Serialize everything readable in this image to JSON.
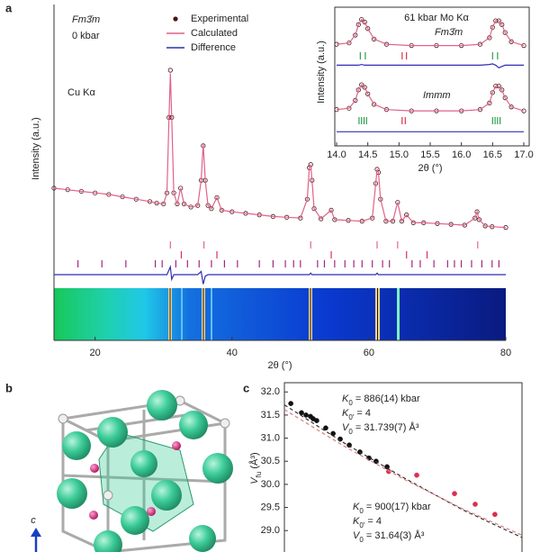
{
  "panel_labels": [
    "a",
    "b",
    "c"
  ],
  "structure": {
    "axis_label": "c"
  },
  "chart_data": [
    {
      "type": "line",
      "xlabel": "2θ (°)",
      "ylabel": "Intensity (a.u.)",
      "annotations": [
        "Fm3̄m",
        "0 kbar",
        "Cu Kα"
      ],
      "x": [
        14,
        16,
        18,
        20,
        22,
        24,
        26,
        28,
        29,
        30,
        30.5,
        30.8,
        31,
        31.2,
        31.5,
        32,
        32.5,
        33,
        34,
        35,
        35.5,
        35.8,
        36.1,
        36.5,
        37,
        37.8,
        38.5,
        40,
        42,
        44,
        46,
        48,
        50,
        51,
        51.3,
        51.5,
        51.7,
        52,
        53,
        54.5,
        55,
        57,
        59,
        60.5,
        61,
        61.2,
        61.4,
        61.7,
        62.5,
        63.5,
        64.2,
        64.8,
        65.5,
        66.5,
        68,
        70,
        72,
        74,
        75.5,
        75.8,
        76.1,
        77,
        78,
        80
      ],
      "series": [
        {
          "name": "Experimental",
          "color": "#4a1414",
          "style": "markers",
          "values": [
            25,
            24,
            23,
            22,
            21,
            19.5,
            18,
            16.5,
            15.5,
            15,
            22,
            70,
            100,
            70,
            22,
            15,
            25,
            15,
            13,
            14,
            30,
            52,
            30,
            14,
            12,
            19,
            11,
            10,
            9,
            8,
            7,
            6.5,
            6,
            18,
            38,
            40,
            30,
            12,
            5.5,
            11,
            5,
            4.5,
            4,
            6,
            28,
            37,
            35,
            18,
            4,
            4,
            16,
            4,
            8,
            3,
            3,
            2.5,
            2,
            1.5,
            6,
            10,
            5,
            1,
            0.5,
            0
          ]
        },
        {
          "name": "Calculated",
          "color": "#e0628a",
          "style": "line",
          "values": [
            25,
            24,
            23,
            22,
            21,
            19.5,
            18,
            16.5,
            15.5,
            15,
            22,
            70,
            98,
            70,
            22,
            15,
            25,
            15,
            13,
            14,
            30,
            53,
            30,
            14,
            12,
            19,
            11,
            10,
            9,
            8,
            7,
            6.5,
            6,
            18,
            38,
            40,
            30,
            12,
            5.5,
            11,
            5,
            4.5,
            4,
            6,
            28,
            37,
            35,
            18,
            4,
            4,
            16,
            4,
            8,
            3,
            3,
            2.5,
            2,
            1.5,
            6,
            10,
            5,
            1,
            0.5,
            0
          ]
        },
        {
          "name": "Difference",
          "color": "#2f2fb5",
          "style": "line",
          "values": [
            -30,
            -30,
            -30,
            -30,
            -30,
            -30,
            -30,
            -30,
            -30,
            -30,
            -30,
            -27,
            -25,
            -33,
            -30,
            -30,
            -30,
            -30,
            -30,
            -30,
            -28,
            -36,
            -31,
            -30,
            -30,
            -30,
            -30,
            -30,
            -30,
            -30,
            -30,
            -30,
            -30,
            -30,
            -30,
            -29,
            -30,
            -30,
            -30,
            -30,
            -30,
            -30,
            -30,
            -30,
            -30,
            -29,
            -30,
            -30,
            -30,
            -30,
            -30,
            -30,
            -30,
            -30,
            -30,
            -30,
            -30,
            -30,
            -30,
            -30,
            -30,
            -30,
            -30,
            -30
          ]
        }
      ],
      "reflections": [
        [
          {
            "color": "#e0649b",
            "x": [
              31.0,
              35.9,
              51.5,
              61.2,
              64.2,
              75.9
            ]
          }
        ],
        [
          {
            "color": "#d9324f",
            "x": [
              32.6,
              37.8,
              54.5,
              65.5,
              68.5
            ]
          }
        ],
        [
          {
            "color": "#a0287e",
            "x": [
              17.5,
              21,
              24.5,
              28.8,
              29.8,
              31.8,
              33.5,
              35.2,
              37,
              38.9,
              40.8,
              44,
              46,
              47.8,
              49,
              50,
              52.5,
              53.5,
              55,
              56.5,
              57.8,
              59,
              60.5,
              62,
              63,
              66.3,
              67.5,
              69.5,
              71.5,
              72.5,
              73.5,
              75,
              76.5,
              78,
              79
            ]
          }
        ]
      ],
      "xlim": [
        14,
        80
      ],
      "xticks": [
        20,
        40,
        60,
        80
      ],
      "ylim": [
        -30,
        100
      ]
    },
    {
      "type": "line",
      "title": "61 kbar Mo Kα",
      "xlabel": "2θ (°)",
      "ylabel": "Intensity (a.u.)",
      "annotations": [
        "Fm3̄m",
        "Immm"
      ],
      "x": [
        14.0,
        14.2,
        14.3,
        14.35,
        14.4,
        14.45,
        14.5,
        14.6,
        14.8,
        15.2,
        15.6,
        16.0,
        16.3,
        16.45,
        16.5,
        16.55,
        16.6,
        16.65,
        16.7,
        16.8,
        17.0
      ],
      "series": [
        {
          "color": "#4a1414",
          "style": "markers",
          "values": [
            73,
            74,
            80,
            88,
            92,
            90,
            85,
            77,
            73,
            72,
            72,
            72,
            73,
            78,
            86,
            91,
            91,
            88,
            82,
            75,
            72
          ]
        },
        {
          "color": "#e0628a",
          "style": "line",
          "values": [
            73,
            74,
            80,
            88,
            92,
            90,
            85,
            77,
            73,
            72,
            72,
            72,
            73,
            78,
            86,
            91,
            91,
            88,
            82,
            75,
            72
          ]
        },
        {
          "color": "#2f2fb5",
          "style": "line",
          "values": [
            57,
            57,
            57,
            57,
            57.5,
            57,
            57,
            57,
            57,
            57,
            57,
            57,
            57,
            57.5,
            58,
            57,
            55,
            56,
            57,
            57,
            57
          ]
        },
        {
          "color": "#4a1414",
          "style": "markers",
          "values": [
            23,
            24,
            30,
            38,
            42,
            40,
            35,
            27,
            23,
            22,
            22,
            22,
            23,
            28,
            36,
            41,
            41,
            38,
            32,
            25,
            22
          ]
        },
        {
          "color": "#e0628a",
          "style": "line",
          "values": [
            23,
            24,
            30,
            38,
            42,
            40,
            35,
            27,
            23,
            22,
            22,
            22,
            23,
            28,
            36,
            41,
            41,
            38,
            32,
            25,
            22
          ]
        },
        {
          "color": "#2f2fb5",
          "style": "line",
          "values": [
            6,
            6,
            6,
            6,
            6,
            6,
            6,
            6,
            6,
            6,
            6,
            6,
            6,
            6,
            6,
            6,
            6,
            6,
            6,
            6,
            6
          ]
        }
      ],
      "reflections": [
        [
          {
            "color": "#2e9e4f",
            "x": [
              14.38,
              14.46,
              16.5,
              16.58
            ]
          },
          {
            "color": "#d9324f",
            "x": [
              15.05,
              15.12
            ]
          }
        ],
        [
          {
            "color": "#2e9e4f",
            "x": [
              14.36,
              14.4,
              14.44,
              14.48,
              16.5,
              16.54,
              16.58,
              16.62
            ]
          },
          {
            "color": "#d9324f",
            "x": [
              15.05,
              15.1
            ]
          }
        ]
      ],
      "xlim": [
        14,
        17
      ],
      "xticks": [
        {
          "value": 14,
          "label": "14.0"
        },
        14.5,
        {
          "value": 15,
          "label": "15.0"
        },
        15.5,
        {
          "value": 16,
          "label": "16.0"
        },
        16.5,
        {
          "value": 17,
          "label": "17.0"
        }
      ],
      "ylim": [
        0,
        100
      ]
    },
    {
      "type": "scatter",
      "ylabel": [
        "V",
        "fu",
        " (Å³)"
      ],
      "annotations": [
        [
          "K",
          "0",
          " = 886(14) kbar"
        ],
        [
          "K",
          "0′",
          " = 4"
        ],
        [
          "V",
          "0",
          " = 31.739(7) Å³"
        ],
        [
          "K",
          "0",
          " = 900(17) kbar"
        ],
        [
          "K",
          "0′",
          " = 4"
        ],
        [
          "V",
          "0",
          " = 31.64(3) Å³"
        ]
      ],
      "series": [
        {
          "color": "#111111",
          "style": "markers",
          "x": [
            2.7,
            7.2,
            9.1,
            11,
            12.1,
            13.6,
            17.4,
            20.5,
            23.5,
            27.3,
            31.8,
            35.6,
            38.6,
            43.2
          ],
          "values": [
            31.75,
            31.55,
            31.5,
            31.47,
            31.42,
            31.38,
            31.22,
            31.1,
            30.98,
            30.85,
            30.7,
            30.57,
            30.5,
            30.38
          ]
        },
        {
          "color": "#d9324f",
          "style": "markers",
          "x": [
            43.9,
            55.7,
            71.6,
            80.3,
            88.6
          ],
          "values": [
            30.28,
            30.2,
            29.8,
            29.57,
            29.35
          ]
        },
        {
          "color": "#333333",
          "style": "dashed",
          "x": [
            0,
            25,
            50,
            75,
            100
          ],
          "values": [
            31.72,
            30.9,
            30.15,
            29.45,
            28.85
          ]
        },
        {
          "color": "#d98080",
          "style": "dashed",
          "x": [
            0,
            25,
            50,
            75,
            100
          ],
          "values": [
            31.62,
            30.83,
            30.12,
            29.47,
            28.9
          ]
        }
      ],
      "xlim": [
        0,
        100
      ],
      "ylim": [
        28.4,
        32.2
      ],
      "yticks": [
        {
          "value": 29,
          "label": "29.0"
        },
        29.5,
        {
          "value": 30,
          "label": "30.0"
        },
        30.5,
        {
          "value": 31,
          "label": "31.0"
        },
        31.5,
        {
          "value": 32,
          "label": "32.0"
        }
      ]
    }
  ]
}
